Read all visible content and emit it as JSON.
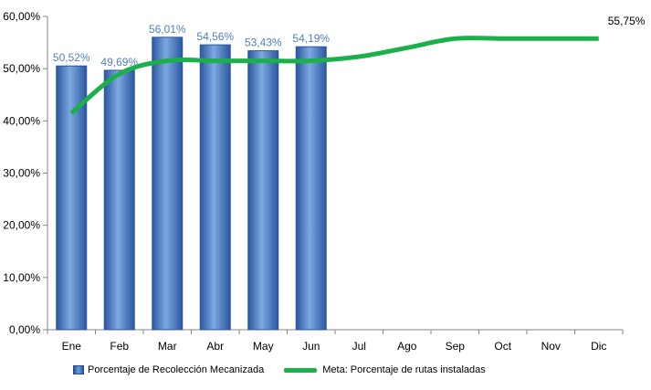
{
  "chart_data": {
    "type": "bar",
    "categories": [
      "Ene",
      "Feb",
      "Mar",
      "Abr",
      "May",
      "Jun",
      "Jul",
      "Ago",
      "Sep",
      "Oct",
      "Nov",
      "Dic"
    ],
    "series": [
      {
        "name": "Porcentaje de Recolección Mecanizada",
        "type": "bar",
        "values": [
          50.52,
          49.69,
          56.01,
          54.56,
          53.43,
          54.19,
          null,
          null,
          null,
          null,
          null,
          null
        ],
        "labels": [
          "50,52%",
          "49,69%",
          "56,01%",
          "54,56%",
          "53,43%",
          "54,19%"
        ]
      },
      {
        "name": "Meta: Porcentaje de rutas instaladas",
        "type": "line",
        "values": [
          41.5,
          49.0,
          51.5,
          51.5,
          51.5,
          51.5,
          52.3,
          54.0,
          55.75,
          55.75,
          55.75,
          55.75
        ],
        "end_label": "55,75%"
      }
    ],
    "yticks": [
      "0,00%",
      "10,00%",
      "20,00%",
      "30,00%",
      "40,00%",
      "50,00%",
      "60,00%"
    ],
    "ylim": [
      0,
      60
    ],
    "legend_position": "bottom-left",
    "colors": {
      "bar": "#4a7cc4",
      "bar_edge": "#2a57a0",
      "line": "#1cb04b",
      "data_label": "#4f81bd",
      "axis": "#868686"
    }
  }
}
